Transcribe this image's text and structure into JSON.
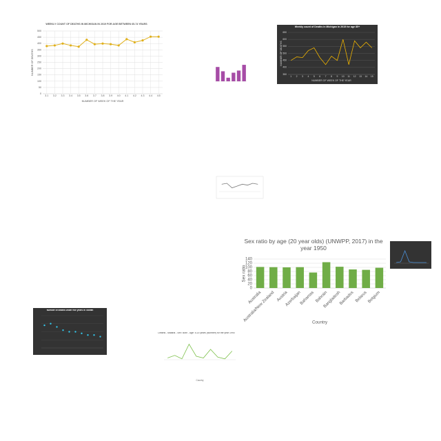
{
  "chart_data": [
    {
      "type": "line",
      "title": "WEEKLY COUNT OF DEATHS IN MICHIGAN IN 2019 FOR AGE BETWEEN 65-74 YEARS",
      "x_label": "NUMBER OF WEEK OF THE YEAR",
      "y_label": "NUMBER OF DEATHS",
      "categories": [
        "3.1",
        "3.2",
        "3.3",
        "3.4",
        "3.5",
        "3.6",
        "3.7",
        "3.8",
        "3.9",
        "4.0",
        "4.1",
        "4.2",
        "4.3",
        "4.4",
        "4.5"
      ],
      "series": [
        {
          "color": "#e0b01c",
          "values": [
            380,
            385,
            400,
            385,
            375,
            430,
            395,
            400,
            395,
            385,
            435,
            410,
            425,
            455,
            455
          ]
        }
      ],
      "ylim": [
        0,
        500
      ],
      "yticks": [
        0,
        50,
        100,
        150,
        200,
        250,
        300,
        350,
        400,
        450,
        500
      ],
      "grid": true
    },
    {
      "type": "bar",
      "categories": [
        null,
        null,
        null,
        null,
        null,
        null
      ],
      "series": [
        {
          "color": "#a64ca6",
          "values": [
            20,
            14,
            5,
            12,
            15,
            23
          ]
        }
      ],
      "ylim": [
        0,
        25
      ]
    },
    {
      "type": "line",
      "title": "Weekly count of Deaths in Michigan in 2015 for age 85+",
      "x_label": "NUMBER OF WEEK OF THE YEAR",
      "y_label": "NUMBER OF DEATHS",
      "categories": [
        "1",
        "2",
        "3",
        "4",
        "5",
        "6",
        "7",
        "8",
        "9",
        "10",
        "11",
        "12",
        "13",
        "14",
        "15"
      ],
      "series": [
        {
          "color": "#f0b400",
          "values": [
            450,
            475,
            470,
            520,
            540,
            470,
            420,
            480,
            450,
            600,
            420,
            590,
            540,
            580,
            540
          ]
        }
      ],
      "ylim": [
        350,
        650
      ],
      "yticks": [
        350,
        400,
        450,
        500,
        550,
        600,
        650
      ],
      "grid": true
    },
    {
      "type": "line",
      "categories": [
        null,
        null,
        null,
        null,
        null,
        null,
        null,
        null
      ],
      "series": [
        {
          "color": "#777777",
          "values": [
            8,
            9,
            4,
            6,
            8,
            7,
            9,
            8
          ]
        }
      ],
      "ylim": [
        0,
        12
      ]
    },
    {
      "type": "bar",
      "title": "Sex ratio by age (20 year olds) (UNWPP, 2017) in the year 1950",
      "x_label": "Country",
      "y_label": "Sex ratio",
      "categories": [
        "Australia",
        "Australia/New Zealand",
        "Austria",
        "Azerbaijan",
        "Bahamas",
        "Bahrain",
        "Bangladesh",
        "Barbados",
        "Belarus",
        "Belgium"
      ],
      "series": [
        {
          "color": "#70ad47",
          "values": [
            102,
            101,
            100,
            101,
            75,
            125,
            103,
            90,
            88,
            98
          ]
        }
      ],
      "ylim": [
        0,
        140
      ],
      "yticks": [
        0,
        20,
        40,
        60,
        80,
        100,
        120,
        140
      ],
      "grid": true
    },
    {
      "type": "line",
      "categories": [
        null,
        null,
        null,
        null,
        null,
        null,
        null,
        null
      ],
      "series": [
        {
          "color": "#4a8fd8",
          "values": [
            1,
            2,
            18,
            2,
            1,
            1,
            1,
            1
          ]
        }
      ],
      "ylim": [
        0,
        20
      ]
    },
    {
      "type": "scatter",
      "title": "Number of deaths under five years in Taiwan",
      "categories": [
        null,
        null,
        null,
        null,
        null,
        null,
        null,
        null,
        null,
        null
      ],
      "series": [
        {
          "color": "#33c4e8",
          "values": [
            14,
            15,
            13,
            11,
            10,
            10,
            9,
            8,
            8,
            7
          ]
        }
      ],
      "ylim": [
        0,
        20
      ],
      "grid": true
    },
    {
      "type": "line",
      "title": "Deaths - Malaria - Sex: Both - Age: 5-14 years (Number) for the year 1990",
      "x_label": "Country",
      "categories": [
        null,
        null,
        null,
        null,
        null,
        null,
        null,
        null,
        null,
        null
      ],
      "series": [
        {
          "color": "#7cc04a",
          "values": [
            2,
            5,
            1,
            18,
            4,
            2,
            12,
            3,
            1,
            10
          ]
        }
      ],
      "ylim": [
        0,
        20
      ]
    }
  ]
}
